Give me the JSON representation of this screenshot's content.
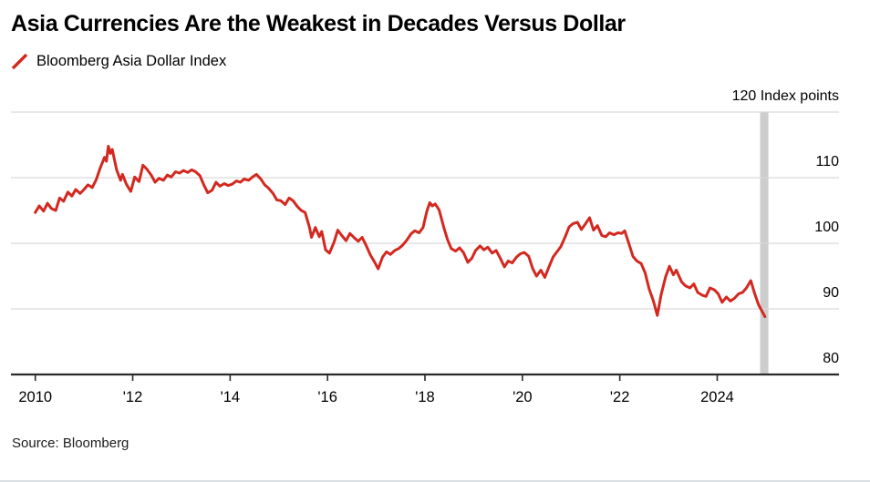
{
  "header": {
    "title": "Asia Currencies Are the Weakest in Decades Versus Dollar"
  },
  "legend": {
    "series_label": "Bloomberg Asia Dollar Index",
    "swatch_color": "#d3281f"
  },
  "footer": {
    "source": "Source: Bloomberg"
  },
  "chart_data": {
    "type": "line",
    "title": "Asia Currencies Are the Weakest in Decades Versus Dollar",
    "xlabel": "",
    "ylabel": "Index points",
    "grid": "horizontal",
    "legend_position": "top-left",
    "colors": {
      "grid": "#d9d9d9",
      "axis": "#2a2a2a",
      "text": "#000000",
      "background": "#ffffff"
    },
    "x_axis": {
      "range": [
        2009.5,
        2026.5
      ],
      "ticks": [
        {
          "value": 2010,
          "label": "2010"
        },
        {
          "value": 2012,
          "label": "'12"
        },
        {
          "value": 2014,
          "label": "'14"
        },
        {
          "value": 2016,
          "label": "'16"
        },
        {
          "value": 2018,
          "label": "'18"
        },
        {
          "value": 2020,
          "label": "'20"
        },
        {
          "value": 2022,
          "label": "'22"
        },
        {
          "value": 2024,
          "label": "2024"
        }
      ]
    },
    "y_axis": {
      "range": [
        80,
        120
      ],
      "unit": "Index points",
      "ticks": [
        {
          "value": 120,
          "label": "120 Index points"
        },
        {
          "value": 110,
          "label": "110"
        },
        {
          "value": 100,
          "label": "100"
        },
        {
          "value": 90,
          "label": "90"
        },
        {
          "value": 80,
          "label": "80"
        }
      ]
    },
    "highlight_band": {
      "start": 2024.88,
      "end": 2025.05,
      "color": "#cdcdcd"
    },
    "series": [
      {
        "name": "Bloomberg Asia Dollar Index",
        "color": "#d3281f",
        "points": [
          [
            2010.0,
            104.7
          ],
          [
            2010.08,
            105.7
          ],
          [
            2010.17,
            104.9
          ],
          [
            2010.25,
            106.1
          ],
          [
            2010.33,
            105.3
          ],
          [
            2010.42,
            105.0
          ],
          [
            2010.5,
            106.9
          ],
          [
            2010.58,
            106.4
          ],
          [
            2010.67,
            107.8
          ],
          [
            2010.75,
            107.2
          ],
          [
            2010.83,
            108.2
          ],
          [
            2010.92,
            107.6
          ],
          [
            2011.0,
            108.2
          ],
          [
            2011.08,
            108.9
          ],
          [
            2011.17,
            108.5
          ],
          [
            2011.25,
            109.7
          ],
          [
            2011.33,
            111.4
          ],
          [
            2011.42,
            113.1
          ],
          [
            2011.46,
            112.5
          ],
          [
            2011.5,
            114.8
          ],
          [
            2011.54,
            113.7
          ],
          [
            2011.58,
            114.3
          ],
          [
            2011.67,
            111.2
          ],
          [
            2011.75,
            109.6
          ],
          [
            2011.79,
            110.5
          ],
          [
            2011.87,
            109.0
          ],
          [
            2011.96,
            107.9
          ],
          [
            2012.04,
            110.1
          ],
          [
            2012.13,
            109.4
          ],
          [
            2012.21,
            111.9
          ],
          [
            2012.29,
            111.3
          ],
          [
            2012.38,
            110.4
          ],
          [
            2012.46,
            109.3
          ],
          [
            2012.54,
            109.9
          ],
          [
            2012.63,
            109.6
          ],
          [
            2012.71,
            110.4
          ],
          [
            2012.79,
            110.1
          ],
          [
            2012.88,
            110.9
          ],
          [
            2012.96,
            110.7
          ],
          [
            2013.04,
            111.1
          ],
          [
            2013.13,
            110.8
          ],
          [
            2013.21,
            111.2
          ],
          [
            2013.29,
            110.9
          ],
          [
            2013.38,
            110.3
          ],
          [
            2013.46,
            108.9
          ],
          [
            2013.54,
            107.7
          ],
          [
            2013.63,
            108.1
          ],
          [
            2013.71,
            109.3
          ],
          [
            2013.79,
            108.7
          ],
          [
            2013.88,
            109.1
          ],
          [
            2013.96,
            108.8
          ],
          [
            2014.04,
            109.0
          ],
          [
            2014.13,
            109.5
          ],
          [
            2014.21,
            109.3
          ],
          [
            2014.29,
            109.8
          ],
          [
            2014.38,
            109.6
          ],
          [
            2014.46,
            110.1
          ],
          [
            2014.54,
            110.5
          ],
          [
            2014.63,
            109.8
          ],
          [
            2014.71,
            108.9
          ],
          [
            2014.79,
            108.4
          ],
          [
            2014.88,
            107.6
          ],
          [
            2014.96,
            106.6
          ],
          [
            2015.04,
            106.5
          ],
          [
            2015.13,
            105.9
          ],
          [
            2015.21,
            106.9
          ],
          [
            2015.29,
            106.5
          ],
          [
            2015.38,
            105.6
          ],
          [
            2015.46,
            105.0
          ],
          [
            2015.54,
            104.7
          ],
          [
            2015.63,
            102.4
          ],
          [
            2015.67,
            100.9
          ],
          [
            2015.75,
            102.4
          ],
          [
            2015.83,
            101.0
          ],
          [
            2015.88,
            101.8
          ],
          [
            2015.96,
            99.0
          ],
          [
            2016.04,
            98.5
          ],
          [
            2016.13,
            100.1
          ],
          [
            2016.21,
            102.0
          ],
          [
            2016.29,
            101.2
          ],
          [
            2016.38,
            100.4
          ],
          [
            2016.46,
            101.5
          ],
          [
            2016.54,
            100.9
          ],
          [
            2016.63,
            100.3
          ],
          [
            2016.71,
            100.9
          ],
          [
            2016.79,
            99.7
          ],
          [
            2016.88,
            98.2
          ],
          [
            2016.96,
            97.2
          ],
          [
            2017.04,
            96.1
          ],
          [
            2017.13,
            97.9
          ],
          [
            2017.21,
            98.7
          ],
          [
            2017.29,
            98.3
          ],
          [
            2017.38,
            98.9
          ],
          [
            2017.46,
            99.2
          ],
          [
            2017.54,
            99.7
          ],
          [
            2017.63,
            100.5
          ],
          [
            2017.71,
            101.4
          ],
          [
            2017.79,
            101.9
          ],
          [
            2017.88,
            101.6
          ],
          [
            2017.96,
            102.4
          ],
          [
            2018.04,
            104.9
          ],
          [
            2018.1,
            106.2
          ],
          [
            2018.15,
            105.7
          ],
          [
            2018.21,
            106.0
          ],
          [
            2018.29,
            105.1
          ],
          [
            2018.38,
            102.6
          ],
          [
            2018.46,
            100.6
          ],
          [
            2018.54,
            99.2
          ],
          [
            2018.63,
            98.8
          ],
          [
            2018.71,
            99.3
          ],
          [
            2018.79,
            98.6
          ],
          [
            2018.88,
            97.1
          ],
          [
            2018.96,
            97.7
          ],
          [
            2019.04,
            98.9
          ],
          [
            2019.13,
            99.6
          ],
          [
            2019.21,
            99.0
          ],
          [
            2019.29,
            99.4
          ],
          [
            2019.38,
            98.5
          ],
          [
            2019.46,
            98.9
          ],
          [
            2019.54,
            97.8
          ],
          [
            2019.63,
            96.4
          ],
          [
            2019.71,
            97.3
          ],
          [
            2019.79,
            97.0
          ],
          [
            2019.88,
            97.9
          ],
          [
            2019.96,
            98.4
          ],
          [
            2020.04,
            98.6
          ],
          [
            2020.13,
            98.0
          ],
          [
            2020.21,
            96.2
          ],
          [
            2020.29,
            95.0
          ],
          [
            2020.38,
            95.9
          ],
          [
            2020.46,
            94.8
          ],
          [
            2020.54,
            96.3
          ],
          [
            2020.63,
            97.9
          ],
          [
            2020.71,
            98.7
          ],
          [
            2020.79,
            99.5
          ],
          [
            2020.88,
            101.0
          ],
          [
            2020.96,
            102.5
          ],
          [
            2021.04,
            103.0
          ],
          [
            2021.13,
            103.2
          ],
          [
            2021.21,
            102.1
          ],
          [
            2021.29,
            102.9
          ],
          [
            2021.38,
            103.9
          ],
          [
            2021.46,
            102.0
          ],
          [
            2021.54,
            102.7
          ],
          [
            2021.63,
            101.2
          ],
          [
            2021.71,
            101.0
          ],
          [
            2021.79,
            101.6
          ],
          [
            2021.88,
            101.3
          ],
          [
            2021.96,
            101.6
          ],
          [
            2022.04,
            101.5
          ],
          [
            2022.1,
            101.9
          ],
          [
            2022.18,
            100.1
          ],
          [
            2022.27,
            98.0
          ],
          [
            2022.35,
            97.3
          ],
          [
            2022.44,
            96.9
          ],
          [
            2022.52,
            95.5
          ],
          [
            2022.6,
            93.1
          ],
          [
            2022.69,
            91.2
          ],
          [
            2022.77,
            89.0
          ],
          [
            2022.85,
            92.2
          ],
          [
            2022.94,
            94.9
          ],
          [
            2023.02,
            96.5
          ],
          [
            2023.1,
            95.2
          ],
          [
            2023.16,
            95.9
          ],
          [
            2023.27,
            94.1
          ],
          [
            2023.35,
            93.5
          ],
          [
            2023.44,
            93.2
          ],
          [
            2023.52,
            93.8
          ],
          [
            2023.6,
            92.5
          ],
          [
            2023.69,
            92.1
          ],
          [
            2023.77,
            91.9
          ],
          [
            2023.85,
            93.2
          ],
          [
            2023.94,
            92.9
          ],
          [
            2024.02,
            92.3
          ],
          [
            2024.1,
            91.0
          ],
          [
            2024.19,
            91.8
          ],
          [
            2024.27,
            91.2
          ],
          [
            2024.35,
            91.6
          ],
          [
            2024.44,
            92.3
          ],
          [
            2024.52,
            92.5
          ],
          [
            2024.6,
            93.2
          ],
          [
            2024.69,
            94.3
          ],
          [
            2024.77,
            92.3
          ],
          [
            2024.85,
            90.6
          ],
          [
            2024.98,
            88.8
          ]
        ]
      }
    ]
  }
}
